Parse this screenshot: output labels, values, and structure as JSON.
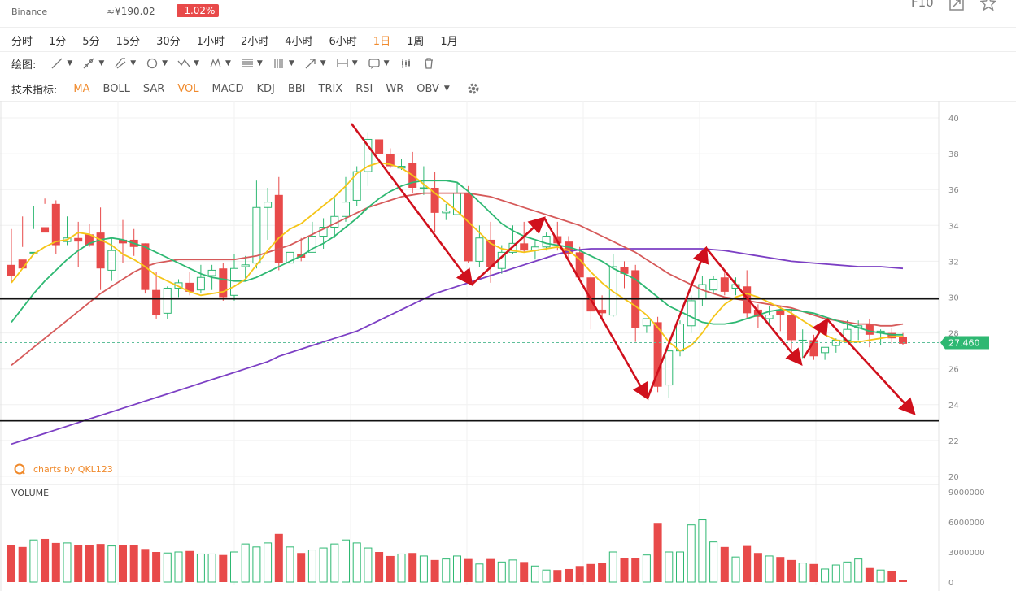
{
  "header": {
    "exchange": "Binance",
    "price_cny": "≈¥190.02",
    "change": "-1.02%",
    "f10": "F10"
  },
  "timeframes": [
    {
      "label": "分时",
      "active": false
    },
    {
      "label": "1分",
      "active": false
    },
    {
      "label": "5分",
      "active": false
    },
    {
      "label": "15分",
      "active": false
    },
    {
      "label": "30分",
      "active": false
    },
    {
      "label": "1小时",
      "active": false
    },
    {
      "label": "2小时",
      "active": false
    },
    {
      "label": "4小时",
      "active": false
    },
    {
      "label": "6小时",
      "active": false
    },
    {
      "label": "1日",
      "active": true
    },
    {
      "label": "1周",
      "active": false
    },
    {
      "label": "1月",
      "active": false
    }
  ],
  "drawing": {
    "label": "绘图:",
    "tools": [
      "line-tool-icon",
      "ray-tool-icon",
      "channel-tool-icon",
      "circle-tool-icon",
      "wave-tool-icon",
      "pattern-tool-icon",
      "fib-tool-icon",
      "gann-tool-icon",
      "arrow-tool-icon",
      "measure-tool-icon",
      "note-tool-icon",
      "candle-tool-icon",
      "trash-icon"
    ]
  },
  "indicators": {
    "label": "技术指标:",
    "items": [
      {
        "label": "MA",
        "on": true
      },
      {
        "label": "BOLL",
        "on": false
      },
      {
        "label": "SAR",
        "on": false
      },
      {
        "label": "VOL",
        "on": true
      },
      {
        "label": "MACD",
        "on": false
      },
      {
        "label": "KDJ",
        "on": false
      },
      {
        "label": "BBI",
        "on": false
      },
      {
        "label": "TRIX",
        "on": false
      },
      {
        "label": "RSI",
        "on": false
      },
      {
        "label": "WR",
        "on": false
      },
      {
        "label": "OBV",
        "on": false
      }
    ]
  },
  "chart": {
    "watermark": "charts by QKL123",
    "volume_label": "VOLUME",
    "current_price": "27.460",
    "y_ticks": [
      "40",
      "38",
      "36",
      "34",
      "32",
      "30",
      "28",
      "26",
      "24",
      "22",
      "20"
    ],
    "vol_ticks": [
      "9000000",
      "6000000",
      "3000000",
      "0"
    ],
    "colors": {
      "up": "#2eb872",
      "down": "#e84a4a",
      "ma5": "#f5c518",
      "ma10": "#2eb872",
      "ma20": "#d65a5a",
      "ma60": "#7c3fc4",
      "arrow": "#d0101c"
    }
  },
  "chart_data": {
    "type": "candlestick",
    "volume_label": "VOLUME",
    "ylim": [
      20,
      40
    ],
    "volume_ylim": [
      0,
      9000000
    ],
    "ohlc": [
      [
        31.8,
        33.8,
        31.2,
        30.8
      ],
      [
        32.1,
        34.5,
        31.6,
        32.8
      ],
      [
        32.5,
        35.1,
        32.5,
        33.8
      ],
      [
        33.9,
        35.5,
        33.6,
        35.2
      ],
      [
        35.2,
        35.4,
        32.9,
        32.4
      ],
      [
        33.1,
        34.5,
        33.3,
        32.9
      ],
      [
        33.3,
        34.2,
        33.1,
        31.7
      ],
      [
        33.5,
        34.1,
        32.9,
        32.8
      ],
      [
        33.6,
        35.0,
        31.6,
        30.4
      ],
      [
        31.5,
        33.3,
        32.6,
        30.9
      ],
      [
        33.2,
        34.3,
        33.0,
        31.9
      ],
      [
        33.2,
        33.8,
        32.8,
        32.3
      ],
      [
        33.0,
        33.0,
        30.4,
        30.2
      ],
      [
        30.4,
        31.4,
        29.0,
        28.8
      ],
      [
        29.1,
        30.6,
        30.5,
        28.8
      ],
      [
        30.5,
        31.0,
        30.8,
        30.0
      ],
      [
        30.8,
        31.4,
        30.3,
        30.1
      ],
      [
        30.4,
        31.8,
        31.1,
        30.2
      ],
      [
        31.2,
        31.8,
        31.5,
        30.4
      ],
      [
        31.6,
        31.9,
        30.0,
        29.8
      ],
      [
        30.1,
        32.4,
        31.6,
        29.8
      ],
      [
        31.7,
        32.3,
        31.8,
        31.0
      ],
      [
        31.9,
        36.5,
        35.0,
        31.6
      ],
      [
        35.0,
        36.1,
        35.3,
        33.2
      ],
      [
        35.7,
        36.7,
        31.9,
        31.5
      ],
      [
        31.9,
        33.3,
        32.5,
        31.4
      ],
      [
        32.4,
        33.3,
        32.2,
        32.0
      ],
      [
        32.5,
        34.2,
        33.4,
        32.5
      ],
      [
        33.4,
        34.4,
        33.9,
        32.7
      ],
      [
        33.9,
        35.5,
        34.5,
        33.3
      ],
      [
        34.5,
        36.7,
        35.3,
        34.2
      ],
      [
        35.4,
        37.3,
        37.0,
        35.1
      ],
      [
        37.0,
        39.2,
        38.8,
        36.2
      ],
      [
        38.8,
        38.7,
        38.0,
        38.0
      ],
      [
        38.0,
        38.3,
        37.3,
        37.2
      ],
      [
        37.2,
        37.7,
        37.3,
        37.1
      ],
      [
        37.5,
        38.1,
        36.1,
        35.8
      ],
      [
        36.1,
        37.3,
        36.1,
        35.7
      ],
      [
        36.1,
        37.0,
        34.7,
        33.6
      ],
      [
        34.7,
        35.2,
        34.8,
        34.3
      ],
      [
        34.6,
        36.4,
        35.8,
        34.9
      ],
      [
        35.8,
        36.2,
        32.0,
        31.9
      ],
      [
        32.0,
        34.0,
        33.3,
        31.7
      ],
      [
        33.2,
        34.2,
        31.7,
        30.8
      ],
      [
        31.6,
        32.9,
        32.5,
        31.3
      ],
      [
        32.5,
        34.0,
        33.0,
        32.4
      ],
      [
        33.0,
        34.2,
        32.6,
        32.5
      ],
      [
        32.6,
        33.1,
        32.8,
        32.1
      ],
      [
        32.8,
        33.6,
        33.4,
        32.6
      ],
      [
        33.4,
        34.2,
        33.0,
        32.6
      ],
      [
        33.1,
        33.4,
        32.4,
        32.2
      ],
      [
        32.5,
        32.8,
        31.1,
        30.9
      ],
      [
        31.1,
        31.3,
        29.2,
        28.2
      ],
      [
        29.3,
        30.1,
        29.1,
        28.8
      ],
      [
        29.0,
        32.4,
        31.7,
        28.9
      ],
      [
        31.7,
        32.0,
        31.3,
        30.5
      ],
      [
        31.5,
        31.8,
        28.3,
        27.5
      ],
      [
        28.4,
        28.8,
        28.8,
        28.0
      ],
      [
        28.6,
        28.9,
        25.0,
        24.7
      ],
      [
        25.1,
        27.1,
        27.0,
        24.4
      ],
      [
        27.0,
        28.7,
        28.5,
        26.7
      ],
      [
        28.4,
        30.1,
        29.8,
        28.0
      ],
      [
        29.9,
        31.2,
        30.7,
        29.5
      ],
      [
        30.4,
        31.2,
        31.0,
        30.2
      ],
      [
        31.1,
        31.5,
        30.3,
        30.1
      ],
      [
        30.5,
        31.1,
        30.7,
        30.1
      ],
      [
        30.6,
        31.5,
        29.1,
        28.8
      ],
      [
        29.3,
        29.6,
        28.9,
        28.3
      ],
      [
        28.8,
        29.5,
        29.0,
        28.4
      ],
      [
        29.3,
        29.5,
        29.0,
        28.1
      ],
      [
        29.0,
        29.4,
        27.6,
        27.1
      ],
      [
        27.6,
        28.2,
        27.6,
        26.6
      ],
      [
        27.6,
        27.9,
        26.7,
        26.5
      ],
      [
        26.9,
        27.2,
        27.2,
        26.5
      ],
      [
        27.3,
        27.7,
        27.6,
        26.9
      ],
      [
        27.6,
        28.7,
        28.2,
        27.6
      ],
      [
        28.3,
        28.7,
        28.4,
        27.6
      ],
      [
        28.5,
        28.8,
        27.9,
        27.2
      ],
      [
        28.0,
        28.2,
        28.1,
        27.3
      ],
      [
        28.0,
        28.3,
        27.7,
        27.4
      ],
      [
        27.8,
        28.0,
        27.4,
        27.3
      ]
    ],
    "volume": [
      3700000,
      3500000,
      4200000,
      4300000,
      3900000,
      3900000,
      3700000,
      3700000,
      3800000,
      3600000,
      3700000,
      3700000,
      3300000,
      3000000,
      2900000,
      3000000,
      3100000,
      2800000,
      2800000,
      2700000,
      3000000,
      3800000,
      3500000,
      3900000,
      4800000,
      3500000,
      2900000,
      3200000,
      3400000,
      3800000,
      4200000,
      3900000,
      3400000,
      3000000,
      2600000,
      2800000,
      2900000,
      2600000,
      2200000,
      2300000,
      2600000,
      2300000,
      1800000,
      2300000,
      2000000,
      2200000,
      2000000,
      1600000,
      1200000,
      1200000,
      1300000,
      1600000,
      1800000,
      1900000,
      3000000,
      2400000,
      2400000,
      2700000,
      5900000,
      3000000,
      3000000,
      5700000,
      6200000,
      4000000,
      3500000,
      2500000,
      3600000,
      2900000,
      2600000,
      2500000,
      2200000,
      1900000,
      1800000,
      1300000,
      1700000,
      2000000,
      2300000,
      1400000,
      1200000,
      1100000,
      200000
    ],
    "ma5": [
      30.8,
      31.6,
      32.4,
      32.8,
      33.1,
      33.2,
      33.6,
      33.5,
      33.2,
      32.9,
      32.4,
      32.1,
      31.7,
      31.2,
      30.9,
      30.6,
      30.3,
      30.1,
      30.2,
      30.3,
      30.6,
      31.0,
      31.8,
      32.6,
      33.3,
      33.8,
      34.1,
      34.6,
      35.1,
      35.6,
      36.2,
      36.9,
      37.3,
      37.5,
      37.4,
      37.2,
      36.8,
      36.3,
      35.8,
      35.3,
      34.8,
      34.2,
      33.6,
      33.0,
      32.7,
      32.6,
      32.5,
      32.6,
      32.7,
      32.8,
      32.6,
      32.1,
      31.4,
      30.8,
      30.3,
      29.9,
      29.5,
      29.0,
      28.3,
      27.5,
      27.0,
      27.3,
      28.0,
      28.9,
      29.6,
      30.0,
      30.2,
      30.0,
      29.7,
      29.4,
      29.1,
      28.7,
      28.3,
      27.9,
      27.6,
      27.5,
      27.5,
      27.6,
      27.7,
      27.8,
      27.8
    ],
    "ma10": [
      28.6,
      29.4,
      30.2,
      30.9,
      31.5,
      32.1,
      32.6,
      33.0,
      33.2,
      33.3,
      33.2,
      33.0,
      32.8,
      32.5,
      32.2,
      31.9,
      31.6,
      31.3,
      31.1,
      31.0,
      30.9,
      30.9,
      31.1,
      31.4,
      31.7,
      32.0,
      32.3,
      32.7,
      33.0,
      33.4,
      33.9,
      34.4,
      35.0,
      35.5,
      35.9,
      36.2,
      36.4,
      36.5,
      36.5,
      36.5,
      36.4,
      35.9,
      35.3,
      34.7,
      34.1,
      33.7,
      33.4,
      33.2,
      33.0,
      32.9,
      32.8,
      32.6,
      32.3,
      32.0,
      31.6,
      31.3,
      31.0,
      30.5,
      30.0,
      29.5,
      29.2,
      28.9,
      28.6,
      28.5,
      28.5,
      28.6,
      28.8,
      29.0,
      29.2,
      29.3,
      29.3,
      29.2,
      29.1,
      28.9,
      28.7,
      28.5,
      28.3,
      28.1,
      28.0,
      27.9,
      27.9
    ],
    "ma20": [
      26.2,
      26.7,
      27.2,
      27.7,
      28.2,
      28.7,
      29.2,
      29.7,
      30.2,
      30.6,
      31.0,
      31.4,
      31.7,
      31.9,
      32.0,
      32.1,
      32.1,
      32.1,
      32.1,
      32.1,
      32.1,
      32.2,
      32.3,
      32.5,
      32.7,
      32.9,
      33.2,
      33.5,
      33.8,
      34.1,
      34.4,
      34.7,
      35.0,
      35.2,
      35.4,
      35.6,
      35.7,
      35.8,
      35.8,
      35.8,
      35.8,
      35.8,
      35.7,
      35.6,
      35.4,
      35.2,
      35.0,
      34.8,
      34.6,
      34.4,
      34.2,
      34.0,
      33.7,
      33.4,
      33.1,
      32.8,
      32.5,
      32.1,
      31.7,
      31.3,
      31.0,
      30.7,
      30.4,
      30.2,
      30.0,
      29.9,
      29.8,
      29.7,
      29.6,
      29.5,
      29.4,
      29.2,
      29.0,
      28.8,
      28.7,
      28.6,
      28.5,
      28.5,
      28.4,
      28.4,
      28.5
    ],
    "ma60": [
      21.8,
      22.0,
      22.2,
      22.4,
      22.6,
      22.8,
      23.0,
      23.2,
      23.4,
      23.6,
      23.8,
      24.0,
      24.2,
      24.4,
      24.6,
      24.8,
      25.0,
      25.2,
      25.4,
      25.6,
      25.8,
      26.0,
      26.2,
      26.4,
      26.7,
      26.9,
      27.1,
      27.3,
      27.5,
      27.7,
      27.9,
      28.1,
      28.4,
      28.7,
      29.0,
      29.3,
      29.6,
      29.9,
      30.2,
      30.4,
      30.6,
      30.8,
      31.0,
      31.2,
      31.4,
      31.6,
      31.8,
      32.0,
      32.2,
      32.4,
      32.55,
      32.65,
      32.7,
      32.7,
      32.7,
      32.7,
      32.7,
      32.7,
      32.7,
      32.7,
      32.7,
      32.7,
      32.7,
      32.65,
      32.6,
      32.5,
      32.4,
      32.3,
      32.2,
      32.1,
      32.0,
      31.95,
      31.9,
      31.85,
      31.8,
      31.75,
      31.7,
      31.7,
      31.7,
      31.65,
      31.6
    ],
    "hlines": [
      29.9,
      23.1
    ],
    "last_price": 27.46,
    "arrows": [
      [
        [
          432,
          152
        ],
        [
          580,
          350
        ]
      ],
      [
        [
          580,
          350
        ],
        [
          669,
          268
        ]
      ],
      [
        [
          669,
          268
        ],
        [
          796,
          490
        ]
      ],
      [
        [
          796,
          490
        ],
        [
          868,
          305
        ]
      ],
      [
        [
          868,
          305
        ],
        [
          985,
          448
        ]
      ],
      [
        [
          988,
          440
        ],
        [
          1017,
          393
        ]
      ],
      [
        [
          1017,
          393
        ],
        [
          1124,
          509
        ]
      ]
    ]
  }
}
